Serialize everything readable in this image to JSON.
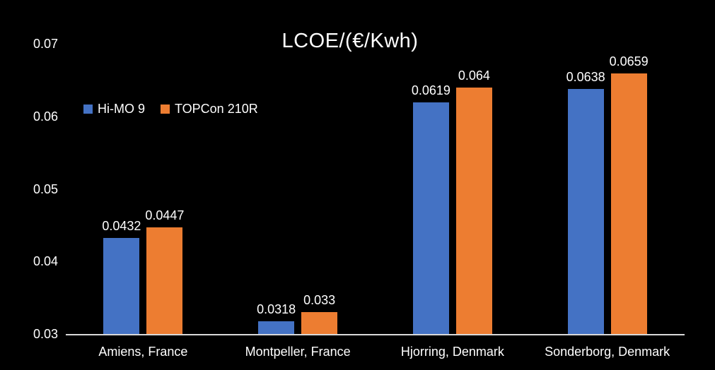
{
  "chart_data": {
    "type": "bar",
    "title": "LCOE/(€/Kwh)",
    "categories": [
      "Amiens, France",
      "Montpeller, France",
      "Hjorring, Denmark",
      "Sonderborg, Denmark"
    ],
    "series": [
      {
        "name": "Hi-MO 9",
        "color": "#4472C4",
        "values": [
          0.0432,
          0.0318,
          0.0619,
          0.0638
        ],
        "labels": [
          "0.0432",
          "0.0318",
          "0.0619",
          "0.0638"
        ]
      },
      {
        "name": "TOPCon 210R",
        "color": "#ED7D31",
        "values": [
          0.0447,
          0.033,
          0.064,
          0.0659
        ],
        "labels": [
          "0.0447",
          "0.033",
          "0.064",
          "0.0659"
        ]
      }
    ],
    "y_axis": {
      "min": 0.03,
      "max": 0.07,
      "tick_values": [
        0.07,
        0.06,
        0.05,
        0.04,
        0.03
      ],
      "tick_labels": [
        "0.07",
        "0.06",
        "0.05",
        "0.04",
        "0.03"
      ]
    },
    "legend_position": "inside-top-left",
    "grid": false,
    "colors": {
      "background": "#000000",
      "text": "#FFFFFF",
      "axis_line": "#D9D9D9"
    }
  }
}
